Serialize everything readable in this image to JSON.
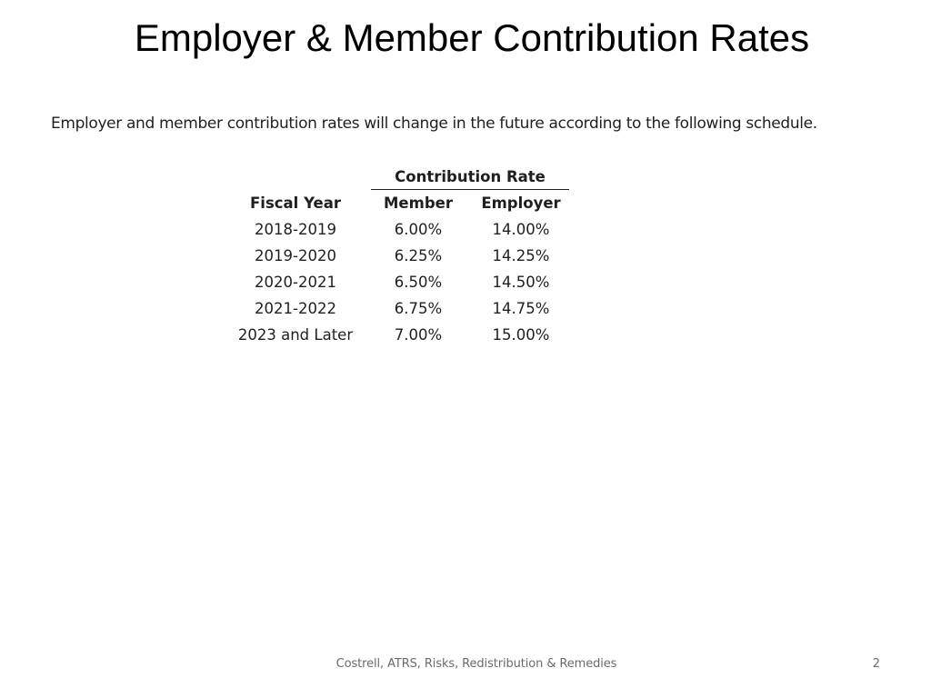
{
  "slide": {
    "title": "Employer & Member Contribution Rates",
    "intro": "Employer and member contribution rates will change in the future according to the following schedule.",
    "table": {
      "group_header": "Contribution Rate",
      "columns": [
        "Fiscal Year",
        "Member",
        "Employer"
      ],
      "rows": [
        [
          "2018-2019",
          "6.00%",
          "14.00%"
        ],
        [
          "2019-2020",
          "6.25%",
          "14.25%"
        ],
        [
          "2020-2021",
          "6.50%",
          "14.50%"
        ],
        [
          "2021-2022",
          "6.75%",
          "14.75%"
        ],
        [
          "2023 and Later",
          "7.00%",
          "15.00%"
        ]
      ]
    },
    "footer": "Costrell, ATRS, Risks, Redistribution & Remedies",
    "page_number": "2"
  }
}
